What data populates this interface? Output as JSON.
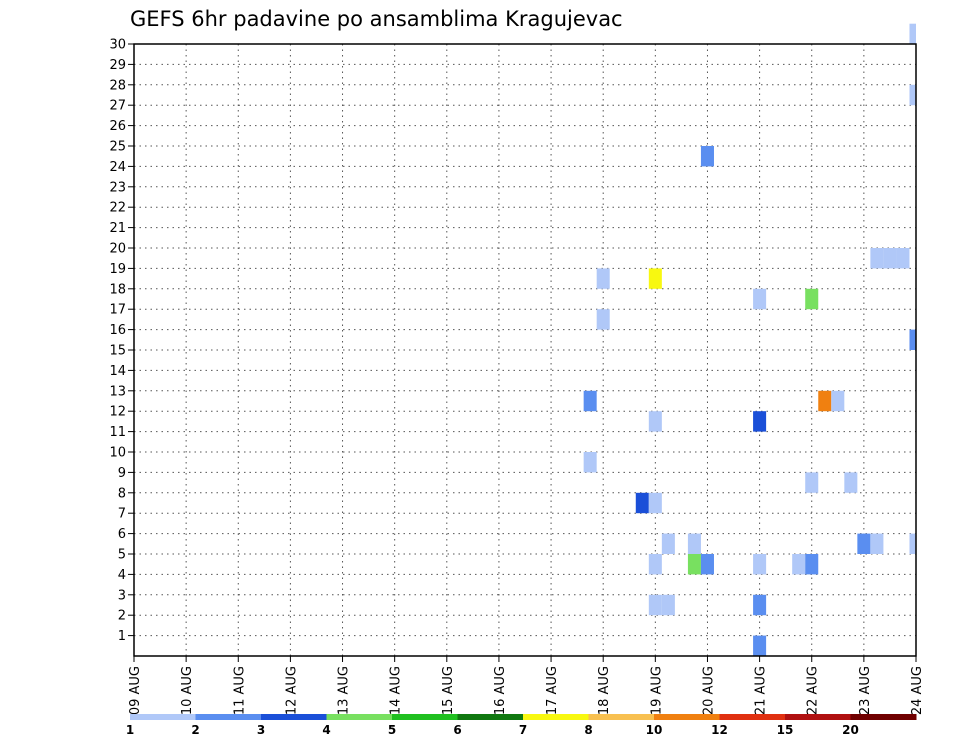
{
  "chart_data": {
    "type": "heatmap",
    "title": "GEFS 6hr padavine po ansamblima Kragujevac",
    "xlabel": "",
    "ylabel": "",
    "x_ticks": [
      "09 AUG",
      "10 AUG",
      "11 AUG",
      "12 AUG",
      "13 AUG",
      "14 AUG",
      "15 AUG",
      "16 AUG",
      "17 AUG",
      "18 AUG",
      "19 AUG",
      "20 AUG",
      "21 AUG",
      "22 AUG",
      "23 AUG",
      "24 AUG"
    ],
    "y_ticks": [
      1,
      2,
      3,
      4,
      5,
      6,
      7,
      8,
      9,
      10,
      11,
      12,
      13,
      14,
      15,
      16,
      17,
      18,
      19,
      20,
      21,
      22,
      23,
      24,
      25,
      26,
      27,
      28,
      29,
      30
    ],
    "xlim": [
      0,
      15
    ],
    "ylim": [
      0,
      30
    ],
    "x_unit_note": "days after 09 AUG",
    "grid": "dotted",
    "colorbar": {
      "labels": [
        "1",
        "2",
        "3",
        "4",
        "5",
        "6",
        "7",
        "8",
        "10",
        "12",
        "15",
        "20"
      ],
      "colors": [
        "#b0c8f8",
        "#5a8ef0",
        "#1a4fd8",
        "#78e060",
        "#20c020",
        "#107810",
        "#f8f810",
        "#f8c050",
        "#f08010",
        "#e03010",
        "#b01010",
        "#700000"
      ]
    },
    "cells": [
      {
        "x": 9.0,
        "y": 18.5,
        "level": 1
      },
      {
        "x": 9.0,
        "y": 16.5,
        "level": 1
      },
      {
        "x": 8.75,
        "y": 12.5,
        "level": 2
      },
      {
        "x": 8.75,
        "y": 9.5,
        "level": 1
      },
      {
        "x": 10.0,
        "y": 18.5,
        "level": 7
      },
      {
        "x": 10.0,
        "y": 11.5,
        "level": 1
      },
      {
        "x": 9.75,
        "y": 7.5,
        "level": 3
      },
      {
        "x": 10.0,
        "y": 7.5,
        "level": 1
      },
      {
        "x": 10.25,
        "y": 5.5,
        "level": 1
      },
      {
        "x": 10.0,
        "y": 4.5,
        "level": 1
      },
      {
        "x": 10.0,
        "y": 2.5,
        "level": 1
      },
      {
        "x": 10.25,
        "y": 2.5,
        "level": 1
      },
      {
        "x": 10.75,
        "y": 5.5,
        "level": 1
      },
      {
        "x": 10.75,
        "y": 4.5,
        "level": 4
      },
      {
        "x": 11.0,
        "y": 4.5,
        "level": 2
      },
      {
        "x": 11.0,
        "y": 24.5,
        "level": 2
      },
      {
        "x": 12.0,
        "y": 17.5,
        "level": 1
      },
      {
        "x": 12.0,
        "y": 11.5,
        "level": 3
      },
      {
        "x": 12.0,
        "y": 4.5,
        "level": 1
      },
      {
        "x": 12.0,
        "y": 2.5,
        "level": 2
      },
      {
        "x": 12.0,
        "y": 0.5,
        "level": 2
      },
      {
        "x": 12.75,
        "y": 4.5,
        "level": 1
      },
      {
        "x": 13.0,
        "y": 4.5,
        "level": 2
      },
      {
        "x": 13.0,
        "y": 17.5,
        "level": 4
      },
      {
        "x": 13.25,
        "y": 12.5,
        "level": 9
      },
      {
        "x": 13.5,
        "y": 12.5,
        "level": 1
      },
      {
        "x": 13.0,
        "y": 8.5,
        "level": 1
      },
      {
        "x": 13.75,
        "y": 8.5,
        "level": 1
      },
      {
        "x": 14.0,
        "y": 5.5,
        "level": 2
      },
      {
        "x": 14.25,
        "y": 5.5,
        "level": 1
      },
      {
        "x": 14.25,
        "y": 19.5,
        "level": 1
      },
      {
        "x": 14.5,
        "y": 19.5,
        "level": 1
      },
      {
        "x": 14.75,
        "y": 19.5,
        "level": 1
      },
      {
        "x": 15.0,
        "y": 30.5,
        "level": 1
      },
      {
        "x": 15.0,
        "y": 27.5,
        "level": 1
      },
      {
        "x": 15.0,
        "y": 15.5,
        "level": 2
      },
      {
        "x": 15.0,
        "y": 5.5,
        "level": 1
      }
    ]
  }
}
